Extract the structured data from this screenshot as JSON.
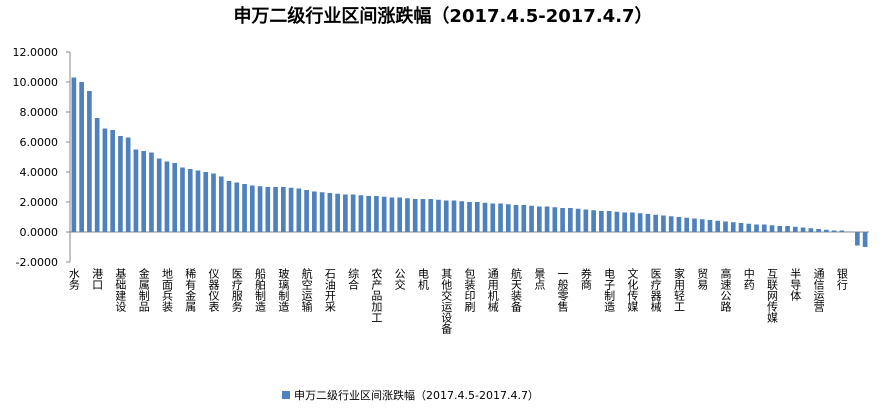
{
  "chart_data": {
    "type": "bar",
    "title": "申万二级行业区间涨跌幅（2017.4.5-2017.4.7）",
    "categories": [
      "水务",
      null,
      null,
      "港口",
      null,
      null,
      "基础建设",
      null,
      null,
      "金属制品",
      null,
      null,
      "地面兵装",
      null,
      null,
      "稀有金属",
      null,
      null,
      "仪器仪表",
      null,
      null,
      "医疗服务",
      null,
      null,
      "船舶制造",
      null,
      null,
      "玻璃制造",
      null,
      null,
      "航空运输",
      null,
      null,
      "石油开采",
      null,
      null,
      "综合",
      null,
      null,
      "农产品加工",
      null,
      null,
      "公交",
      null,
      null,
      "电机",
      null,
      null,
      "其他交运设备",
      null,
      null,
      "包装印刷",
      null,
      null,
      "通用机械",
      null,
      null,
      "航天装备",
      null,
      null,
      "景点",
      null,
      null,
      "一般零售",
      null,
      null,
      "券商",
      null,
      null,
      "电子制造",
      null,
      null,
      "文化传媒",
      null,
      null,
      "医疗器械",
      null,
      null,
      "家用轻工",
      null,
      null,
      "贸易",
      null,
      null,
      "高速公路",
      null,
      null,
      "中药",
      null,
      null,
      "互联网传媒",
      null,
      null,
      "半导体",
      null,
      null,
      "通信运营",
      null,
      null,
      "银行",
      null,
      null,
      null
    ],
    "series": [
      {
        "name": "申万二级行业区间涨跌幅（2017.4.5-2017.4.7）",
        "color": "#4f81bd",
        "values": [
          10.3,
          10.0,
          9.4,
          7.6,
          6.9,
          6.8,
          6.4,
          6.3,
          5.5,
          5.4,
          5.3,
          4.9,
          4.7,
          4.6,
          4.3,
          4.2,
          4.1,
          4.0,
          3.9,
          3.7,
          3.4,
          3.3,
          3.2,
          3.1,
          3.05,
          3.0,
          3.0,
          3.0,
          2.95,
          2.9,
          2.8,
          2.7,
          2.65,
          2.6,
          2.55,
          2.5,
          2.5,
          2.45,
          2.4,
          2.4,
          2.35,
          2.3,
          2.3,
          2.25,
          2.2,
          2.2,
          2.2,
          2.15,
          2.1,
          2.1,
          2.05,
          2.0,
          2.0,
          1.95,
          1.9,
          1.9,
          1.85,
          1.8,
          1.8,
          1.75,
          1.7,
          1.7,
          1.65,
          1.6,
          1.6,
          1.55,
          1.5,
          1.45,
          1.4,
          1.4,
          1.35,
          1.3,
          1.3,
          1.25,
          1.2,
          1.15,
          1.1,
          1.05,
          1.0,
          0.95,
          0.9,
          0.85,
          0.8,
          0.75,
          0.7,
          0.65,
          0.6,
          0.55,
          0.5,
          0.5,
          0.45,
          0.4,
          0.4,
          0.35,
          0.3,
          0.25,
          0.2,
          0.15,
          0.1,
          0.1,
          0.03,
          -0.9,
          -1.0
        ]
      }
    ],
    "ylim": [
      -2,
      12
    ],
    "yticks": [
      {
        "value": -2,
        "label": "-2.0000"
      },
      {
        "value": 0,
        "label": "0.0000"
      },
      {
        "value": 2,
        "label": "2.0000"
      },
      {
        "value": 4,
        "label": "4.0000"
      },
      {
        "value": 6,
        "label": "6.0000"
      },
      {
        "value": 8,
        "label": "8.0000"
      },
      {
        "value": 10,
        "label": "10.0000"
      },
      {
        "value": 12,
        "label": "12.0000"
      }
    ],
    "grid": false,
    "legend": "bottom"
  }
}
